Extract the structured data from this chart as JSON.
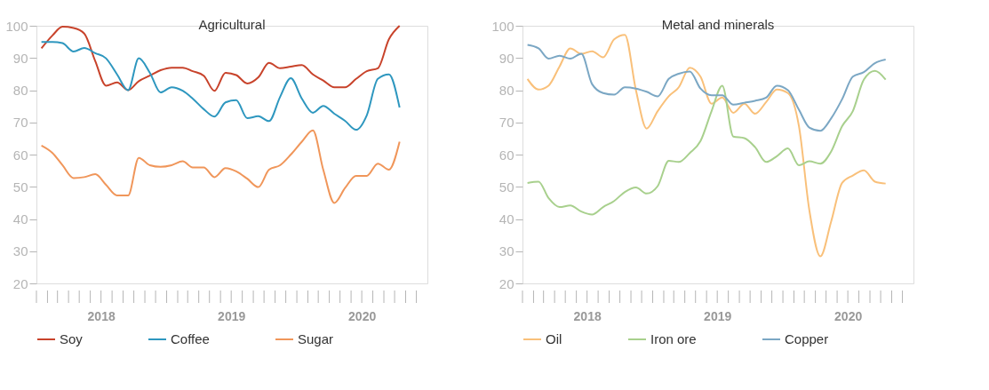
{
  "chart_data": [
    {
      "type": "line",
      "title": "Agricultural",
      "legend": "bottom",
      "x": [
        "2018-01-15",
        "2018-02-15",
        "2018-03-15",
        "2018-04-15",
        "2018-05-15",
        "2018-06-15",
        "2018-07-15",
        "2018-08-15",
        "2018-09-15",
        "2018-10-15",
        "2018-11-15",
        "2018-12-15",
        "2019-01-15",
        "2019-02-15",
        "2019-03-15",
        "2019-04-15",
        "2019-05-15",
        "2019-06-15",
        "2019-07-15",
        "2019-08-15",
        "2019-09-15",
        "2019-10-15",
        "2019-11-15",
        "2019-12-15",
        "2020-01-15",
        "2020-02-15",
        "2020-03-15",
        "2020-04-15",
        "2020-05-15",
        "2020-06-15",
        "2020-07-15",
        "2020-08-15",
        "2020-09-15",
        "2020-10-15"
      ],
      "xlim": [
        "2018-01-01",
        "2021-01-01"
      ],
      "xticks": [
        {
          "value": "2018-01-01",
          "label": null
        },
        {
          "value": "2018-02-01",
          "label": null
        },
        {
          "value": "2018-03-01",
          "label": null
        },
        {
          "value": "2018-04-01",
          "label": null
        },
        {
          "value": "2018-05-01",
          "label": null
        },
        {
          "value": "2018-06-01",
          "label": null
        },
        {
          "value": "2018-07-01",
          "label": "2018"
        },
        {
          "value": "2018-08-01",
          "label": null
        },
        {
          "value": "2018-09-01",
          "label": null
        },
        {
          "value": "2018-10-01",
          "label": null
        },
        {
          "value": "2018-11-01",
          "label": null
        },
        {
          "value": "2018-12-01",
          "label": null
        },
        {
          "value": "2019-01-01",
          "label": null
        },
        {
          "value": "2019-02-01",
          "label": null
        },
        {
          "value": "2019-03-01",
          "label": null
        },
        {
          "value": "2019-04-01",
          "label": null
        },
        {
          "value": "2019-05-01",
          "label": null
        },
        {
          "value": "2019-06-01",
          "label": null
        },
        {
          "value": "2019-07-01",
          "label": "2019"
        },
        {
          "value": "2019-08-01",
          "label": null
        },
        {
          "value": "2019-09-01",
          "label": null
        },
        {
          "value": "2019-10-01",
          "label": null
        },
        {
          "value": "2019-11-01",
          "label": null
        },
        {
          "value": "2019-12-01",
          "label": null
        },
        {
          "value": "2020-01-01",
          "label": null
        },
        {
          "value": "2020-02-01",
          "label": null
        },
        {
          "value": "2020-03-01",
          "label": null
        },
        {
          "value": "2020-04-01",
          "label": null
        },
        {
          "value": "2020-05-01",
          "label": null
        },
        {
          "value": "2020-06-01",
          "label": null
        },
        {
          "value": "2020-07-01",
          "label": "2020"
        },
        {
          "value": "2020-08-01",
          "label": null
        },
        {
          "value": "2020-09-01",
          "label": null
        },
        {
          "value": "2020-10-01",
          "label": null
        },
        {
          "value": "2020-11-01",
          "label": null
        },
        {
          "value": "2020-12-01",
          "label": null
        }
      ],
      "ylim": [
        20,
        100
      ],
      "yticks": [
        20,
        30,
        40,
        50,
        60,
        70,
        80,
        90,
        100
      ],
      "series": [
        {
          "name": "Soy",
          "color": "#c8432b",
          "values": [
            93,
            97,
            99.7,
            99.3,
            97.6,
            89,
            81.4,
            82.4,
            80,
            82.8,
            84.5,
            86.2,
            87,
            87,
            85.9,
            84.5,
            79.8,
            85.4,
            84.7,
            82.1,
            84,
            88.5,
            86.8,
            87.3,
            87.8,
            84.9,
            83,
            80.9,
            80.9,
            83.5,
            85.9,
            86.8,
            95.8,
            100
          ]
        },
        {
          "name": "Coffee",
          "color": "#2e97bf",
          "values": [
            95,
            95,
            94.6,
            92,
            93.1,
            91.5,
            89.9,
            84.9,
            80,
            89.9,
            85.4,
            79.3,
            80.9,
            79.8,
            77.4,
            74.1,
            71.8,
            76.2,
            76.9,
            71.3,
            71.9,
            70.4,
            77.9,
            83.7,
            77.4,
            73,
            75.1,
            72.7,
            70.5,
            67.7,
            72.2,
            83.5,
            84.9,
            74.6
          ]
        },
        {
          "name": "Sugar",
          "color": "#f0965a",
          "values": [
            62.8,
            60.5,
            56.7,
            52.7,
            53,
            53.9,
            50.6,
            47.3,
            47.3,
            59,
            56.7,
            56.2,
            56.7,
            57.9,
            56,
            56,
            53,
            55.8,
            54.8,
            52.5,
            49.9,
            55.3,
            56.7,
            60,
            64,
            67.5,
            55.3,
            45,
            49.6,
            53.4,
            53.4,
            57.2,
            55.3,
            64
          ]
        }
      ]
    },
    {
      "type": "line",
      "title": "Metal and minerals",
      "legend": "bottom",
      "x": [
        "2018-01-15",
        "2018-02-15",
        "2018-03-15",
        "2018-04-15",
        "2018-05-15",
        "2018-06-15",
        "2018-07-15",
        "2018-08-15",
        "2018-09-15",
        "2018-10-15",
        "2018-11-15",
        "2018-12-15",
        "2019-01-15",
        "2019-02-15",
        "2019-03-15",
        "2019-04-15",
        "2019-05-15",
        "2019-06-15",
        "2019-07-15",
        "2019-08-15",
        "2019-09-15",
        "2019-10-15",
        "2019-11-15",
        "2019-12-15",
        "2020-01-15",
        "2020-02-15",
        "2020-03-15",
        "2020-04-15",
        "2020-05-15",
        "2020-06-15",
        "2020-07-15",
        "2020-08-15",
        "2020-09-15",
        "2020-10-15"
      ],
      "xlim": [
        "2018-01-01",
        "2021-01-01"
      ],
      "xticks": [
        {
          "value": "2018-01-01",
          "label": null
        },
        {
          "value": "2018-02-01",
          "label": null
        },
        {
          "value": "2018-03-01",
          "label": null
        },
        {
          "value": "2018-04-01",
          "label": null
        },
        {
          "value": "2018-05-01",
          "label": null
        },
        {
          "value": "2018-06-01",
          "label": null
        },
        {
          "value": "2018-07-01",
          "label": "2018"
        },
        {
          "value": "2018-08-01",
          "label": null
        },
        {
          "value": "2018-09-01",
          "label": null
        },
        {
          "value": "2018-10-01",
          "label": null
        },
        {
          "value": "2018-11-01",
          "label": null
        },
        {
          "value": "2018-12-01",
          "label": null
        },
        {
          "value": "2019-01-01",
          "label": null
        },
        {
          "value": "2019-02-01",
          "label": null
        },
        {
          "value": "2019-03-01",
          "label": null
        },
        {
          "value": "2019-04-01",
          "label": null
        },
        {
          "value": "2019-05-01",
          "label": null
        },
        {
          "value": "2019-06-01",
          "label": null
        },
        {
          "value": "2019-07-01",
          "label": "2019"
        },
        {
          "value": "2019-08-01",
          "label": null
        },
        {
          "value": "2019-09-01",
          "label": null
        },
        {
          "value": "2019-10-01",
          "label": null
        },
        {
          "value": "2019-11-01",
          "label": null
        },
        {
          "value": "2019-12-01",
          "label": null
        },
        {
          "value": "2020-01-01",
          "label": null
        },
        {
          "value": "2020-02-01",
          "label": null
        },
        {
          "value": "2020-03-01",
          "label": null
        },
        {
          "value": "2020-04-01",
          "label": null
        },
        {
          "value": "2020-05-01",
          "label": null
        },
        {
          "value": "2020-06-01",
          "label": null
        },
        {
          "value": "2020-07-01",
          "label": "2020"
        },
        {
          "value": "2020-08-01",
          "label": null
        },
        {
          "value": "2020-09-01",
          "label": null
        },
        {
          "value": "2020-10-01",
          "label": null
        },
        {
          "value": "2020-11-01",
          "label": null
        },
        {
          "value": "2020-12-01",
          "label": null
        }
      ],
      "ylim": [
        20,
        100
      ],
      "yticks": [
        20,
        30,
        40,
        50,
        60,
        70,
        80,
        90,
        100
      ],
      "series": [
        {
          "name": "Oil",
          "color": "#f9c07a",
          "values": [
            83.5,
            80.2,
            81.4,
            87.4,
            93,
            91.3,
            92.1,
            90.2,
            95.8,
            97.2,
            80,
            68.1,
            73.5,
            78.1,
            80.9,
            87,
            84.2,
            75.8,
            77.7,
            73,
            75.8,
            72.7,
            76.3,
            80.2,
            79.1,
            68.8,
            42.8,
            28.4,
            39.1,
            51.2,
            53.5,
            55.1,
            51.6,
            51
          ]
        },
        {
          "name": "Iron ore",
          "color": "#a8d08d",
          "values": [
            51.2,
            51.6,
            46.5,
            43.7,
            44.2,
            42.3,
            41.4,
            43.7,
            45.6,
            48.4,
            49.8,
            47.9,
            50.2,
            58.1,
            57.7,
            60.5,
            64.2,
            73.5,
            81.4,
            65.6,
            65.1,
            62.3,
            57.7,
            59.5,
            61.9,
            56.7,
            57.9,
            57.2,
            60.9,
            68.8,
            73.5,
            83.3,
            86,
            83.3
          ]
        },
        {
          "name": "Copper",
          "color": "#7ba7c4",
          "values": [
            94.1,
            93,
            89.8,
            90.7,
            89.8,
            91.3,
            81.9,
            79.1,
            78.6,
            80.9,
            80.5,
            79.5,
            78.1,
            83.5,
            85.1,
            85.8,
            80.5,
            78.4,
            78.4,
            75.5,
            76.1,
            76.7,
            77.7,
            81.4,
            80,
            73.9,
            68.4,
            67.4,
            71.2,
            77.2,
            84.2,
            85.6,
            88.4,
            89.5
          ]
        }
      ]
    }
  ]
}
